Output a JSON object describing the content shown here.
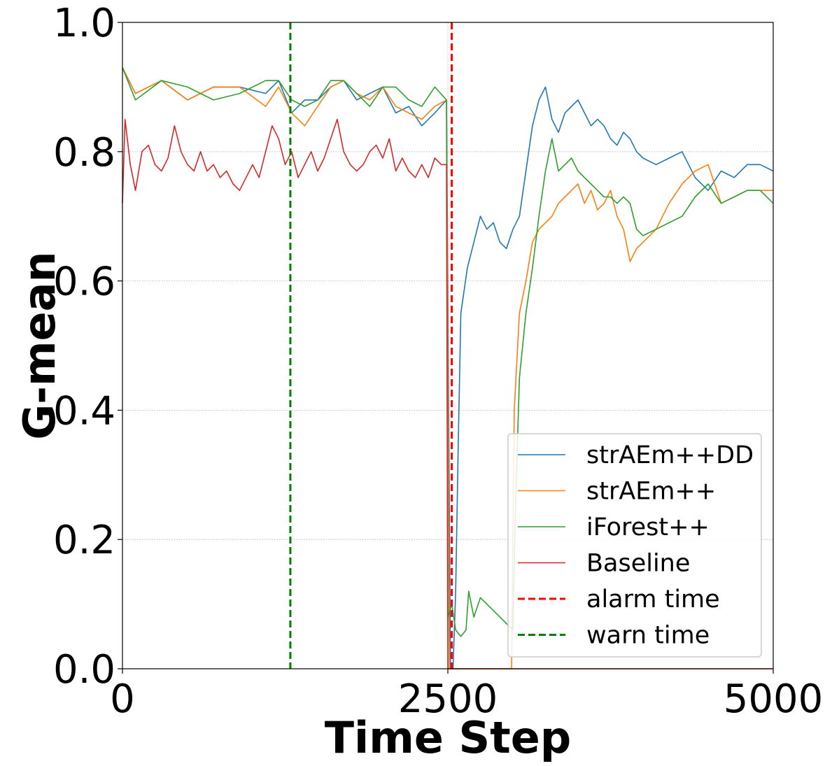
{
  "chart_data": {
    "type": "line",
    "xlabel": "Time Step",
    "ylabel": "G-mean",
    "xlim": [
      0,
      5000
    ],
    "ylim": [
      0.0,
      1.0
    ],
    "x_ticks": [
      0,
      2500,
      5000
    ],
    "x_tick_labels": [
      "0",
      "2500",
      "5000"
    ],
    "y_ticks": [
      0.0,
      0.2,
      0.4,
      0.6,
      0.8,
      1.0
    ],
    "y_tick_labels": [
      "0.0",
      "0.2",
      "0.4",
      "0.6",
      "0.8",
      "1.0"
    ],
    "grid": "horizontal dotted",
    "legend_position": "lower-right",
    "series": [
      {
        "name": "strAEm++DD",
        "color": "#1f77b4",
        "x": [
          0,
          100,
          300,
          500,
          700,
          900,
          1100,
          1200,
          1300,
          1400,
          1500,
          1600,
          1700,
          1800,
          1900,
          2000,
          2100,
          2200,
          2300,
          2400,
          2490,
          2520,
          2540,
          2560,
          2580,
          2600,
          2650,
          2700,
          2750,
          2800,
          2850,
          2900,
          2950,
          3000,
          3050,
          3100,
          3150,
          3200,
          3250,
          3300,
          3350,
          3400,
          3450,
          3500,
          3550,
          3600,
          3650,
          3700,
          3750,
          3800,
          3850,
          3900,
          3950,
          4000,
          4100,
          4200,
          4300,
          4400,
          4500,
          4600,
          4700,
          4800,
          4900,
          5000
        ],
        "y": [
          0.93,
          0.89,
          0.91,
          0.88,
          0.9,
          0.9,
          0.89,
          0.91,
          0.86,
          0.88,
          0.88,
          0.9,
          0.91,
          0.88,
          0.89,
          0.9,
          0.86,
          0.87,
          0.84,
          0.86,
          0.88,
          0.0,
          0.0,
          0.12,
          0.35,
          0.55,
          0.62,
          0.66,
          0.7,
          0.68,
          0.69,
          0.66,
          0.65,
          0.68,
          0.7,
          0.77,
          0.84,
          0.88,
          0.9,
          0.85,
          0.83,
          0.86,
          0.87,
          0.88,
          0.86,
          0.84,
          0.85,
          0.84,
          0.82,
          0.81,
          0.83,
          0.82,
          0.8,
          0.79,
          0.78,
          0.79,
          0.8,
          0.76,
          0.74,
          0.77,
          0.76,
          0.78,
          0.78,
          0.77
        ]
      },
      {
        "name": "strAEm++",
        "color": "#ff7f0e",
        "x": [
          0,
          100,
          300,
          500,
          700,
          900,
          1100,
          1200,
          1300,
          1400,
          1500,
          1600,
          1700,
          1800,
          1900,
          2000,
          2100,
          2200,
          2300,
          2400,
          2490,
          2510,
          2600,
          2700,
          2800,
          2950,
          2990,
          3010,
          3050,
          3100,
          3150,
          3200,
          3250,
          3300,
          3350,
          3400,
          3450,
          3500,
          3550,
          3600,
          3650,
          3700,
          3750,
          3800,
          3850,
          3900,
          3950,
          4000,
          4050,
          4100,
          4200,
          4300,
          4400,
          4500,
          4600,
          4700,
          4800,
          4900,
          5000
        ],
        "y": [
          0.93,
          0.89,
          0.91,
          0.88,
          0.9,
          0.9,
          0.87,
          0.9,
          0.86,
          0.84,
          0.87,
          0.9,
          0.91,
          0.89,
          0.88,
          0.9,
          0.87,
          0.86,
          0.85,
          0.87,
          0.88,
          0.0,
          0.0,
          0.0,
          0.0,
          0.0,
          0.0,
          0.4,
          0.55,
          0.6,
          0.66,
          0.68,
          0.69,
          0.7,
          0.72,
          0.73,
          0.74,
          0.75,
          0.72,
          0.74,
          0.71,
          0.72,
          0.74,
          0.7,
          0.68,
          0.63,
          0.65,
          0.66,
          0.67,
          0.68,
          0.72,
          0.75,
          0.77,
          0.78,
          0.72,
          0.73,
          0.74,
          0.74,
          0.74
        ]
      },
      {
        "name": "iForest++",
        "color": "#2ca02c",
        "x": [
          0,
          100,
          300,
          500,
          700,
          900,
          1100,
          1200,
          1300,
          1400,
          1500,
          1600,
          1700,
          1800,
          1900,
          2000,
          2100,
          2200,
          2300,
          2400,
          2490,
          2500,
          2530,
          2560,
          2600,
          2640,
          2660,
          2700,
          2750,
          2800,
          2850,
          2900,
          2950,
          3000,
          3020,
          3050,
          3100,
          3150,
          3200,
          3250,
          3300,
          3350,
          3400,
          3450,
          3500,
          3550,
          3600,
          3650,
          3700,
          3750,
          3800,
          3850,
          3900,
          3950,
          4000,
          4100,
          4200,
          4300,
          4400,
          4500,
          4600,
          4700,
          4800,
          4900,
          5000
        ],
        "y": [
          0.93,
          0.88,
          0.91,
          0.9,
          0.88,
          0.89,
          0.91,
          0.91,
          0.88,
          0.87,
          0.88,
          0.91,
          0.91,
          0.89,
          0.87,
          0.9,
          0.9,
          0.88,
          0.87,
          0.9,
          0.88,
          0.08,
          0.1,
          0.06,
          0.05,
          0.06,
          0.12,
          0.08,
          0.11,
          0.1,
          0.09,
          0.08,
          0.07,
          0.06,
          0.25,
          0.45,
          0.55,
          0.62,
          0.7,
          0.77,
          0.82,
          0.77,
          0.78,
          0.79,
          0.77,
          0.76,
          0.75,
          0.74,
          0.73,
          0.73,
          0.72,
          0.73,
          0.72,
          0.68,
          0.67,
          0.68,
          0.69,
          0.7,
          0.73,
          0.75,
          0.72,
          0.73,
          0.74,
          0.74,
          0.72
        ]
      },
      {
        "name": "Baseline",
        "color": "#d62728",
        "x": [
          0,
          20,
          60,
          100,
          150,
          200,
          250,
          300,
          350,
          400,
          450,
          500,
          550,
          600,
          650,
          700,
          750,
          800,
          850,
          900,
          950,
          1000,
          1050,
          1100,
          1150,
          1200,
          1250,
          1300,
          1350,
          1400,
          1450,
          1500,
          1550,
          1600,
          1650,
          1700,
          1750,
          1800,
          1850,
          1900,
          1950,
          2000,
          2050,
          2100,
          2150,
          2200,
          2250,
          2300,
          2350,
          2400,
          2450,
          2490,
          2500,
          5000
        ],
        "y": [
          0.72,
          0.85,
          0.78,
          0.74,
          0.8,
          0.81,
          0.78,
          0.77,
          0.79,
          0.84,
          0.8,
          0.78,
          0.77,
          0.8,
          0.77,
          0.78,
          0.76,
          0.77,
          0.75,
          0.74,
          0.76,
          0.78,
          0.76,
          0.8,
          0.84,
          0.82,
          0.78,
          0.8,
          0.76,
          0.78,
          0.8,
          0.77,
          0.79,
          0.82,
          0.85,
          0.8,
          0.78,
          0.77,
          0.78,
          0.8,
          0.81,
          0.79,
          0.82,
          0.77,
          0.79,
          0.77,
          0.76,
          0.78,
          0.76,
          0.79,
          0.78,
          0.78,
          0.0,
          0.0
        ]
      }
    ],
    "vlines": [
      {
        "name": "alarm time",
        "x": 2530,
        "color": "#ff0000",
        "style": "dashed"
      },
      {
        "name": "warn time",
        "x": 1290,
        "color": "#008000",
        "style": "dashed"
      }
    ]
  }
}
